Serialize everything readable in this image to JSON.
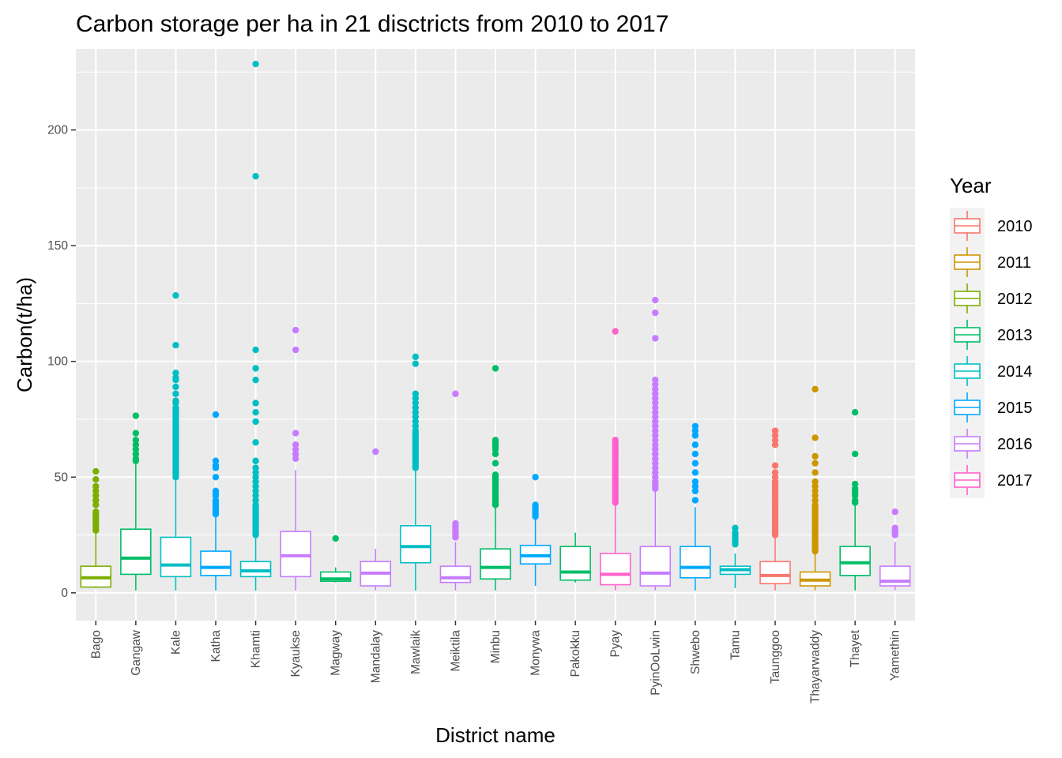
{
  "chart_data": {
    "type": "boxplot",
    "title": "Carbon storage per ha in 21 disctricts from 2010 to 2017",
    "xlabel": "District name",
    "ylabel": "Carbon(t/ha)",
    "ylim": [
      -12,
      235
    ],
    "yticks": [
      0,
      50,
      100,
      150,
      200
    ],
    "grid": true,
    "legend": {
      "title": "Year",
      "position": "right",
      "entries": [
        "2010",
        "2011",
        "2012",
        "2013",
        "2014",
        "2015",
        "2016",
        "2017"
      ]
    },
    "colors": {
      "2010": "#F8766D",
      "2011": "#CD9600",
      "2012": "#7CAE00",
      "2013": "#00BE67",
      "2014": "#00BFC4",
      "2015": "#00A9FF",
      "2016": "#C77CFF",
      "2017": "#FF61CC"
    },
    "boxes": [
      {
        "district": "Bago",
        "year": "2012",
        "min": 2,
        "q1": 2.5,
        "median": 6.5,
        "q3": 11.5,
        "max": 26,
        "outliers": [
          27,
          28,
          29,
          30,
          31,
          32,
          33,
          34,
          35,
          38,
          40,
          42,
          44,
          46,
          49,
          52.5
        ]
      },
      {
        "district": "Gangaw",
        "year": "2013",
        "min": 1,
        "q1": 8,
        "median": 15,
        "q3": 27.5,
        "max": 56,
        "outliers": [
          57,
          58,
          60,
          62,
          64,
          66,
          69,
          76.5
        ]
      },
      {
        "district": "Kale",
        "year": "2014",
        "min": 1,
        "q1": 7,
        "median": 12,
        "q3": 24,
        "max": 49,
        "outliers": [
          50,
          51,
          52,
          53,
          54,
          55,
          56,
          57,
          58,
          59,
          60,
          61,
          62,
          63,
          64,
          65,
          66,
          67,
          68,
          69,
          70,
          71,
          72,
          73,
          74,
          75,
          76,
          77,
          78,
          79,
          80,
          82,
          83,
          86,
          89,
          92,
          93,
          95,
          107,
          128.5
        ]
      },
      {
        "district": "Katha",
        "year": "2015",
        "min": 1,
        "q1": 7.5,
        "median": 11,
        "q3": 18,
        "max": 33,
        "outliers": [
          34,
          35,
          36,
          37,
          38,
          39,
          40,
          42,
          43,
          44,
          50,
          54,
          55,
          57,
          77
        ]
      },
      {
        "district": "Khamti",
        "year": "2014",
        "min": 1,
        "q1": 7,
        "median": 9.5,
        "q3": 13.5,
        "max": 24,
        "outliers": [
          25,
          26,
          27,
          28,
          29,
          30,
          31,
          32,
          33,
          34,
          35,
          36,
          37,
          38,
          40,
          42,
          44,
          46,
          48,
          50,
          52,
          54,
          57,
          65,
          74,
          78,
          82,
          92,
          97,
          105,
          180,
          228.5
        ]
      },
      {
        "district": "Kyaukse",
        "year": "2016",
        "min": 1,
        "q1": 7,
        "median": 16,
        "q3": 26.5,
        "max": 53,
        "outliers": [
          58,
          60,
          62,
          64,
          69,
          105,
          113.5
        ]
      },
      {
        "district": "Magway",
        "year": "2013",
        "min": 4.5,
        "q1": 5,
        "median": 6,
        "q3": 9,
        "max": 11,
        "outliers": [
          23.5
        ]
      },
      {
        "district": "Mandalay",
        "year": "2016",
        "min": 1,
        "q1": 3,
        "median": 8.5,
        "q3": 13.5,
        "max": 19,
        "outliers": [
          61
        ]
      },
      {
        "district": "Mawlaik",
        "year": "2014",
        "min": 1,
        "q1": 13,
        "median": 20,
        "q3": 29,
        "max": 53,
        "outliers": [
          54,
          55,
          56,
          57,
          58,
          59,
          60,
          61,
          62,
          63,
          64,
          65,
          66,
          67,
          68,
          69,
          70,
          72,
          74,
          76,
          78,
          80,
          82,
          84,
          86,
          99,
          102
        ]
      },
      {
        "district": "Meiktila",
        "year": "2016",
        "min": 1,
        "q1": 4.5,
        "median": 6.5,
        "q3": 11.5,
        "max": 22,
        "outliers": [
          24,
          25,
          26,
          27,
          28,
          29,
          30,
          86
        ]
      },
      {
        "district": "Minbu",
        "year": "2013",
        "min": 1,
        "q1": 6,
        "median": 11,
        "q3": 19,
        "max": 37,
        "outliers": [
          38,
          39,
          40,
          41,
          42,
          43,
          44,
          45,
          46,
          47,
          48,
          49,
          50,
          51,
          56,
          60,
          62,
          63,
          64,
          65,
          66,
          97
        ]
      },
      {
        "district": "Monywa",
        "year": "2015",
        "min": 3,
        "q1": 12.5,
        "median": 16,
        "q3": 20.5,
        "max": 32,
        "outliers": [
          33,
          34,
          35,
          36,
          37,
          38,
          50
        ]
      },
      {
        "district": "Pakokku",
        "year": "2013",
        "min": 4.5,
        "q1": 5.5,
        "median": 9,
        "q3": 20,
        "max": 26,
        "outliers": []
      },
      {
        "district": "Pyay",
        "year": "2017",
        "min": 1,
        "q1": 3.5,
        "median": 8,
        "q3": 17,
        "max": 38,
        "outliers": [
          39,
          40,
          41,
          42,
          43,
          44,
          45,
          46,
          47,
          48,
          49,
          50,
          51,
          52,
          53,
          54,
          55,
          56,
          57,
          58,
          59,
          60,
          61,
          62,
          63,
          64,
          65,
          66,
          113
        ]
      },
      {
        "district": "PyinOoLwin",
        "year": "2016",
        "min": 1,
        "q1": 3,
        "median": 8.5,
        "q3": 20,
        "max": 44,
        "outliers": [
          45,
          46,
          47,
          48,
          50,
          52,
          54,
          56,
          58,
          60,
          62,
          64,
          66,
          68,
          70,
          72,
          74,
          76,
          78,
          80,
          82,
          84,
          86,
          88,
          90,
          92,
          110,
          121,
          126.5
        ]
      },
      {
        "district": "Shwebo",
        "year": "2015",
        "min": 1,
        "q1": 6.5,
        "median": 11,
        "q3": 20,
        "max": 37,
        "outliers": [
          40,
          44,
          46,
          48,
          52,
          56,
          60,
          64,
          68,
          70,
          72
        ]
      },
      {
        "district": "Tamu",
        "year": "2014",
        "min": 2,
        "q1": 8,
        "median": 10,
        "q3": 11.5,
        "max": 17,
        "outliers": [
          21,
          22,
          23,
          24,
          25,
          26,
          28
        ]
      },
      {
        "district": "Taunggoo",
        "year": "2010",
        "min": 1,
        "q1": 4,
        "median": 7.5,
        "q3": 13.5,
        "max": 24,
        "outliers": [
          25,
          26,
          27,
          28,
          29,
          30,
          31,
          32,
          33,
          34,
          35,
          36,
          37,
          38,
          39,
          40,
          41,
          42,
          43,
          44,
          45,
          46,
          47,
          48,
          50,
          52,
          55,
          64,
          66,
          68,
          70
        ]
      },
      {
        "district": "Thayarwaddy",
        "year": "2011",
        "min": 1,
        "q1": 3,
        "median": 5.5,
        "q3": 9,
        "max": 17,
        "outliers": [
          18,
          19,
          20,
          21,
          22,
          23,
          24,
          25,
          26,
          27,
          28,
          29,
          30,
          31,
          32,
          33,
          34,
          35,
          36,
          37,
          38,
          40,
          42,
          44,
          46,
          48,
          52,
          56,
          59,
          67,
          88
        ]
      },
      {
        "district": "Thayet",
        "year": "2013",
        "min": 1,
        "q1": 7.5,
        "median": 13,
        "q3": 20,
        "max": 38,
        "outliers": [
          39,
          40,
          42,
          43,
          44,
          45,
          47,
          60,
          78
        ]
      },
      {
        "district": "Yamethin",
        "year": "2016",
        "min": 1,
        "q1": 3,
        "median": 5,
        "q3": 11.5,
        "max": 22,
        "outliers": [
          25,
          26,
          27,
          28,
          35
        ]
      }
    ]
  }
}
